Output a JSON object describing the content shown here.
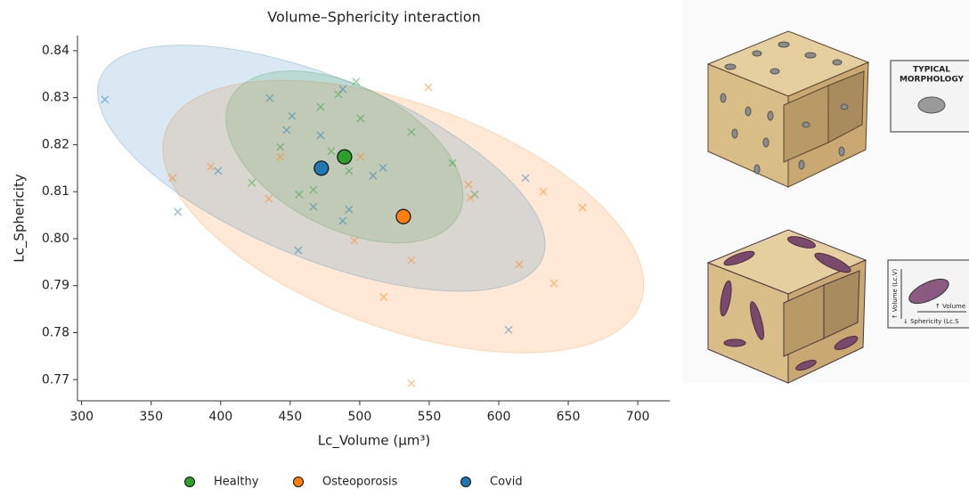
{
  "chart_data": {
    "type": "scatter",
    "title": "Volume–Sphericity interaction",
    "xlabel": "Lc_Volume (µm³)",
    "ylabel": "Lc_Sphericity",
    "xlim": [
      297,
      723
    ],
    "ylim": [
      0.7655,
      0.8432
    ],
    "xticks": [
      300,
      350,
      400,
      450,
      500,
      550,
      600,
      650,
      700
    ],
    "yticks": [
      0.77,
      0.78,
      0.79,
      {
        "value": 0.8,
        "label": "0.80"
      },
      0.81,
      0.82,
      0.83,
      0.84
    ],
    "series": [
      {
        "name": "Healthy",
        "color": "#2ca02c",
        "x": [
          497.4,
          484.6,
          471.8,
          500.6,
          442.9,
          479.5,
          422.4,
          456.4,
          466.7,
          492.3,
          537.2,
          566.7,
          582.7
        ],
        "y": [
          0.8334,
          0.8307,
          0.828,
          0.8256,
          0.8195,
          0.8186,
          0.8119,
          0.8094,
          0.8104,
          0.8144,
          0.8227,
          0.8161,
          0.8094
        ],
        "mean": {
          "x": 489.1,
          "y": 0.8174
        },
        "ellipse": {
          "sx": 85.3,
          "sy": 0.0183,
          "rho": -0.45
        }
      },
      {
        "name": "Osteoporosis",
        "color": "#ff7f0e",
        "x": [
          365.4,
          392.9,
          442.9,
          434.6,
          500.6,
          496.2,
          549.4,
          578.2,
          579.5,
          632.1,
          660.3,
          614.7,
          639.7,
          517.3,
          537.2,
          537.2
        ],
        "y": [
          0.8129,
          0.8153,
          0.8174,
          0.8085,
          0.8174,
          0.7996,
          0.8322,
          0.8115,
          0.8087,
          0.81,
          0.8066,
          0.7945,
          0.7905,
          0.7876,
          0.7954,
          0.7692
        ],
        "mean": {
          "x": 531.4,
          "y": 0.8047
        },
        "ellipse": {
          "sx": 173,
          "sy": 0.029,
          "rho": -0.5
        }
      },
      {
        "name": "Covid",
        "color": "#1f77b4",
        "x": [
          316.7,
          435.3,
          451.3,
          487.8,
          447.4,
          471.8,
          398.1,
          369.2,
          466.7,
          509.6,
          516.7,
          487.8,
          492.3,
          455.8,
          619.2,
          607.1
        ],
        "y": [
          0.8296,
          0.8299,
          0.8261,
          0.8318,
          0.8231,
          0.822,
          0.8144,
          0.8057,
          0.8068,
          0.8134,
          0.8151,
          0.8038,
          0.8062,
          0.7975,
          0.8129,
          0.7806
        ],
        "mean": {
          "x": 472.4,
          "y": 0.815
        },
        "ellipse": {
          "sx": 161,
          "sy": 0.0262,
          "rho": -0.62
        }
      }
    ]
  },
  "panels": {
    "top_box": [
      "TYPICAL",
      "MORPHOLOGY"
    ],
    "bottom_box": {
      "vertical": "↑ Volume (Lc.V)",
      "horizontal": "↑ Volume",
      "bottom": "↓ Sphericity (Lc.S"
    }
  }
}
